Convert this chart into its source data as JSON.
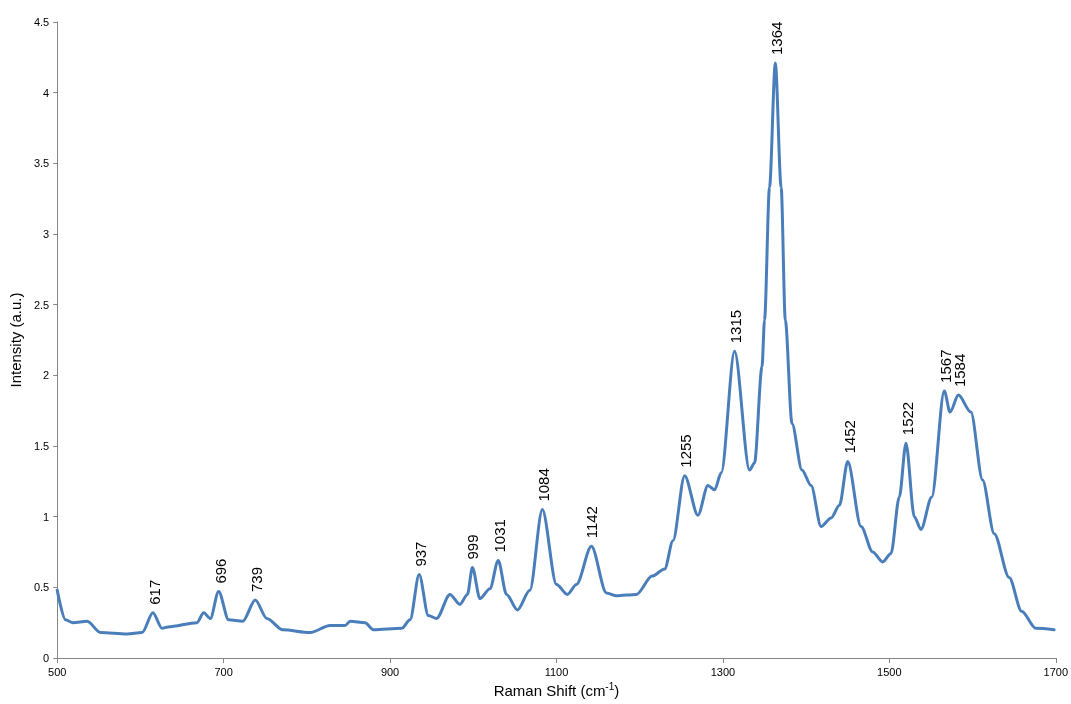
{
  "chart_data": {
    "type": "line",
    "xlabel": "Raman Shift (cm$^{-1}$)",
    "ylabel": "Intensity (a.u.)",
    "xlim": [
      500,
      1700
    ],
    "xticks": [
      500,
      700,
      900,
      1100,
      1300,
      1500,
      1700
    ],
    "ylim": [
      0,
      4.5
    ],
    "yticks": [
      0,
      0.5,
      1,
      1.5,
      2,
      2.5,
      3,
      3.5,
      4,
      4.5
    ],
    "grid": false,
    "marker": "none",
    "line_style": "solid",
    "series": [
      {
        "color": "#4a7ebb",
        "x": [
          500,
          510,
          519,
          536,
          552,
          584,
          602,
          615,
          626,
          633,
          668,
          676,
          684,
          694,
          706,
          723,
          738,
          752,
          771,
          804,
          828,
          846,
          852,
          870,
          880,
          914,
          924,
          935,
          946,
          956,
          972,
          984,
          993,
          999,
          1008,
          1020,
          1030,
          1040,
          1053,
          1068,
          1083,
          1100,
          1113,
          1124,
          1142,
          1160,
          1172,
          1196,
          1215,
          1230,
          1240,
          1254,
          1270,
          1282,
          1290,
          1298,
          1314,
          1332,
          1338,
          1347,
          1350,
          1356,
          1363,
          1370,
          1375,
          1383,
          1395,
          1406,
          1418,
          1430,
          1440,
          1450,
          1466,
          1480,
          1492,
          1502,
          1512,
          1520,
          1530,
          1538,
          1551,
          1566,
          1573,
          1583,
          1598,
          1612,
          1626,
          1644,
          1659,
          1676,
          1698
        ],
        "values": [
          0.48,
          0.27,
          0.25,
          0.26,
          0.18,
          0.17,
          0.18,
          0.32,
          0.21,
          0.22,
          0.25,
          0.32,
          0.28,
          0.47,
          0.27,
          0.26,
          0.41,
          0.28,
          0.2,
          0.18,
          0.23,
          0.23,
          0.26,
          0.25,
          0.2,
          0.21,
          0.27,
          0.59,
          0.3,
          0.28,
          0.45,
          0.38,
          0.45,
          0.64,
          0.42,
          0.49,
          0.69,
          0.45,
          0.34,
          0.48,
          1.05,
          0.52,
          0.45,
          0.52,
          0.79,
          0.46,
          0.44,
          0.45,
          0.58,
          0.63,
          0.83,
          1.29,
          1.01,
          1.22,
          1.19,
          1.31,
          2.17,
          1.33,
          1.38,
          2.06,
          2.39,
          3.33,
          4.21,
          3.33,
          2.39,
          1.66,
          1.33,
          1.22,
          0.93,
          0.99,
          1.08,
          1.39,
          0.93,
          0.75,
          0.68,
          0.74,
          1.14,
          1.52,
          1.0,
          0.91,
          1.14,
          1.89,
          1.74,
          1.86,
          1.74,
          1.26,
          0.88,
          0.57,
          0.33,
          0.21,
          0.2
        ]
      }
    ],
    "annotations": [
      {
        "text": "617",
        "x": 617,
        "y": 0.32
      },
      {
        "text": "696",
        "x": 696,
        "y": 0.47
      },
      {
        "text": "739",
        "x": 739,
        "y": 0.41
      },
      {
        "text": "937",
        "x": 937,
        "y": 0.59
      },
      {
        "text": "999",
        "x": 999,
        "y": 0.64
      },
      {
        "text": "1031",
        "x": 1031,
        "y": 0.69
      },
      {
        "text": "1084",
        "x": 1084,
        "y": 1.05
      },
      {
        "text": "1142",
        "x": 1142,
        "y": 0.79
      },
      {
        "text": "1255",
        "x": 1255,
        "y": 1.29
      },
      {
        "text": "1315",
        "x": 1315,
        "y": 2.17
      },
      {
        "text": "1364",
        "x": 1364,
        "y": 4.21
      },
      {
        "text": "1452",
        "x": 1452,
        "y": 1.39
      },
      {
        "text": "1522",
        "x": 1522,
        "y": 1.52
      },
      {
        "text": "1567",
        "x": 1567,
        "y": 1.89
      },
      {
        "text": "1584",
        "x": 1584,
        "y": 1.86
      }
    ]
  }
}
